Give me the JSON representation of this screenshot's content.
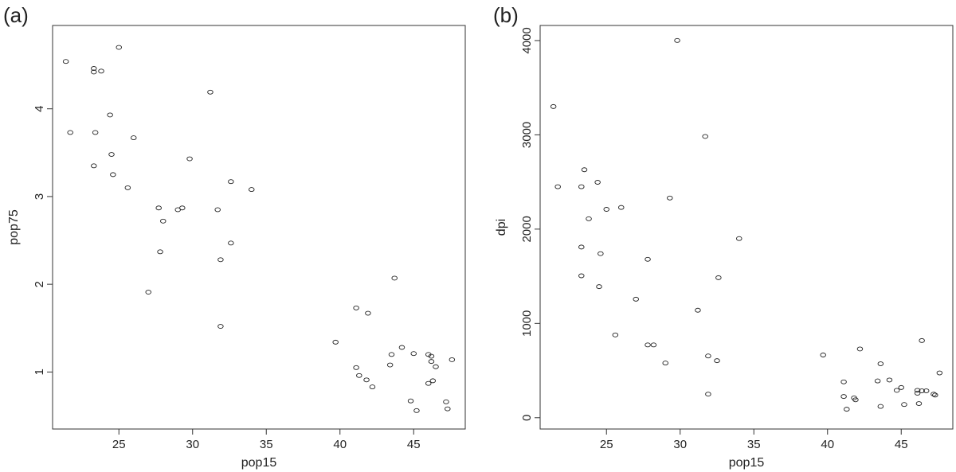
{
  "chart_data": [
    {
      "type": "scatter",
      "panel_label": "(a)",
      "xlabel": "pop15",
      "ylabel": "pop75",
      "xlim": [
        20.5,
        48.5
      ],
      "ylim": [
        0.35,
        4.95
      ],
      "xticks": [
        25,
        30,
        35,
        40,
        45
      ],
      "yticks": [
        1,
        2,
        3,
        4
      ],
      "grid": false,
      "marker": "open-circle",
      "points": [
        [
          21.4,
          4.54
        ],
        [
          21.7,
          3.73
        ],
        [
          23.3,
          4.46
        ],
        [
          23.3,
          4.42
        ],
        [
          23.8,
          4.43
        ],
        [
          25.0,
          4.7
        ],
        [
          23.4,
          3.73
        ],
        [
          24.4,
          3.93
        ],
        [
          26.0,
          3.67
        ],
        [
          24.5,
          3.48
        ],
        [
          23.3,
          3.35
        ],
        [
          24.6,
          3.25
        ],
        [
          25.6,
          3.1
        ],
        [
          29.8,
          3.43
        ],
        [
          31.2,
          4.19
        ],
        [
          32.6,
          3.17
        ],
        [
          34.0,
          3.08
        ],
        [
          27.7,
          2.87
        ],
        [
          28.0,
          2.72
        ],
        [
          29.0,
          2.85
        ],
        [
          29.3,
          2.87
        ],
        [
          31.7,
          2.85
        ],
        [
          32.6,
          2.47
        ],
        [
          31.9,
          2.28
        ],
        [
          27.8,
          2.37
        ],
        [
          27.0,
          1.91
        ],
        [
          31.9,
          1.52
        ],
        [
          39.7,
          1.34
        ],
        [
          43.7,
          2.07
        ],
        [
          41.1,
          1.73
        ],
        [
          41.9,
          1.67
        ],
        [
          43.5,
          1.2
        ],
        [
          44.2,
          1.28
        ],
        [
          45.0,
          1.21
        ],
        [
          46.0,
          1.2
        ],
        [
          46.2,
          1.18
        ],
        [
          43.4,
          1.08
        ],
        [
          41.1,
          1.05
        ],
        [
          46.2,
          1.12
        ],
        [
          46.5,
          1.06
        ],
        [
          41.3,
          0.96
        ],
        [
          41.8,
          0.91
        ],
        [
          42.2,
          0.83
        ],
        [
          46.0,
          0.87
        ],
        [
          46.3,
          0.9
        ],
        [
          47.6,
          1.14
        ],
        [
          44.8,
          0.67
        ],
        [
          45.2,
          0.56
        ],
        [
          47.2,
          0.66
        ],
        [
          47.3,
          0.58
        ]
      ]
    },
    {
      "type": "scatter",
      "panel_label": "(b)",
      "xlabel": "pop15",
      "ylabel": "dpi",
      "xlim": [
        20.5,
        48.5
      ],
      "ylim": [
        -120,
        4160
      ],
      "xticks": [
        25,
        30,
        35,
        40,
        45
      ],
      "yticks": [
        0,
        1000,
        2000,
        3000,
        4000
      ],
      "grid": false,
      "marker": "open-circle",
      "points": [
        [
          29.8,
          4001
        ],
        [
          21.4,
          3300
        ],
        [
          31.7,
          2983
        ],
        [
          23.5,
          2630
        ],
        [
          24.4,
          2497
        ],
        [
          21.7,
          2450
        ],
        [
          23.3,
          2450
        ],
        [
          29.3,
          2330
        ],
        [
          26.0,
          2230
        ],
        [
          25.0,
          2210
        ],
        [
          23.8,
          2110
        ],
        [
          34.0,
          1900
        ],
        [
          23.3,
          1810
        ],
        [
          24.6,
          1740
        ],
        [
          27.8,
          1680
        ],
        [
          23.3,
          1505
        ],
        [
          32.6,
          1485
        ],
        [
          24.5,
          1390
        ],
        [
          27.0,
          1257
        ],
        [
          31.2,
          1140
        ],
        [
          25.6,
          878
        ],
        [
          27.8,
          772
        ],
        [
          28.2,
          772
        ],
        [
          42.2,
          729
        ],
        [
          46.4,
          818
        ],
        [
          39.7,
          665
        ],
        [
          31.9,
          655
        ],
        [
          32.5,
          605
        ],
        [
          29.0,
          580
        ],
        [
          43.6,
          572
        ],
        [
          47.6,
          475
        ],
        [
          44.2,
          400
        ],
        [
          43.4,
          390
        ],
        [
          45.0,
          320
        ],
        [
          44.7,
          290
        ],
        [
          46.1,
          290
        ],
        [
          46.4,
          285
        ],
        [
          46.7,
          285
        ],
        [
          46.1,
          260
        ],
        [
          47.2,
          250
        ],
        [
          47.3,
          240
        ],
        [
          31.9,
          250
        ],
        [
          41.1,
          380
        ],
        [
          41.1,
          225
        ],
        [
          41.8,
          210
        ],
        [
          41.9,
          190
        ],
        [
          46.2,
          150
        ],
        [
          45.2,
          140
        ],
        [
          43.6,
          120
        ],
        [
          41.3,
          90
        ]
      ]
    }
  ]
}
